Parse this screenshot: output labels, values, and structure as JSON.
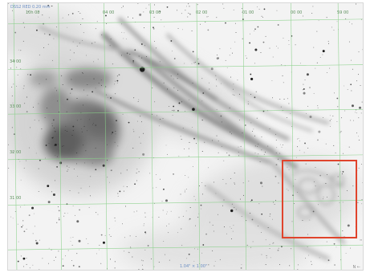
{
  "image": {
    "caption": "DSS2 RED  0.20 mm",
    "scale_label": "1.04\" × 1.00\"",
    "corner_label": "N ←"
  },
  "grid": {
    "color": "#88d088",
    "top_labels": [
      "10h 08",
      "04 00",
      "03 00",
      "02 00",
      "01 00",
      "00 00",
      "59 00"
    ],
    "left_labels": [
      "34 00",
      "33 00",
      "32 00",
      "31 00"
    ]
  },
  "highlight_box": {
    "color": "#e0442c"
  }
}
